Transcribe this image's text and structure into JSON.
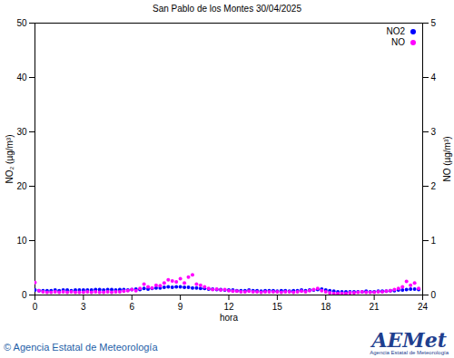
{
  "chart_data": {
    "type": "scatter",
    "title": "San Pablo de los Montes 30/04/2025",
    "x_label": "hora",
    "y_label": "NO₂ (µg/m³)",
    "y2_label": "NO (µg/m³)",
    "annotations": [
      "© Agencia Estatal de Meteorología",
      "AEMet",
      "Agencia Estatal de Meteorología"
    ],
    "legend": "top-right",
    "marker": "circle",
    "xlim": [
      0,
      24
    ],
    "xticks": [
      0,
      3,
      6,
      9,
      12,
      15,
      18,
      21,
      24
    ],
    "ylim": [
      0,
      50
    ],
    "yticks": [
      0,
      10,
      20,
      30,
      40,
      50
    ],
    "y2lim": [
      0,
      5
    ],
    "y2ticks": [
      0,
      1,
      2,
      3,
      4,
      5
    ],
    "x": [
      0,
      0.25,
      0.5,
      0.75,
      1,
      1.25,
      1.5,
      1.75,
      2,
      2.25,
      2.5,
      2.75,
      3,
      3.25,
      3.5,
      3.75,
      4,
      4.25,
      4.5,
      4.75,
      5,
      5.25,
      5.5,
      5.75,
      6,
      6.25,
      6.5,
      6.75,
      7,
      7.25,
      7.5,
      7.75,
      8,
      8.25,
      8.5,
      8.75,
      9,
      9.25,
      9.5,
      9.75,
      10,
      10.25,
      10.5,
      10.75,
      11,
      11.25,
      11.5,
      11.75,
      12,
      12.25,
      12.5,
      12.75,
      13,
      13.25,
      13.5,
      13.75,
      14,
      14.25,
      14.5,
      14.75,
      15,
      15.25,
      15.5,
      15.75,
      16,
      16.25,
      16.5,
      16.75,
      17,
      17.25,
      17.5,
      17.75,
      18,
      18.25,
      18.5,
      18.75,
      19,
      19.25,
      19.5,
      19.75,
      20,
      20.25,
      20.5,
      20.75,
      21,
      21.25,
      21.5,
      21.75,
      22,
      22.25,
      22.5,
      22.75,
      23,
      23.25,
      23.5,
      23.75
    ],
    "series": [
      {
        "name": "NO2",
        "color": "#0000ff",
        "axis": "y",
        "values": [
          0.9,
          0.8,
          0.8,
          0.8,
          0.8,
          0.9,
          0.8,
          0.9,
          0.9,
          0.8,
          0.9,
          0.9,
          0.9,
          0.9,
          0.9,
          1.0,
          1.0,
          0.9,
          1.0,
          1.0,
          0.9,
          1.0,
          1.0,
          0.9,
          1.0,
          1.1,
          1.0,
          1.2,
          1.1,
          1.2,
          1.3,
          1.3,
          1.4,
          1.5,
          1.4,
          1.5,
          1.5,
          1.4,
          1.4,
          1.3,
          1.3,
          1.2,
          1.2,
          1.1,
          1.1,
          1.0,
          1.0,
          0.9,
          0.9,
          0.9,
          0.8,
          0.8,
          0.8,
          0.9,
          0.8,
          0.8,
          0.7,
          0.8,
          0.8,
          0.8,
          0.7,
          0.8,
          0.8,
          0.7,
          0.8,
          0.8,
          0.9,
          0.8,
          0.9,
          0.9,
          1.0,
          1.1,
          0.9,
          0.8,
          0.7,
          0.6,
          0.6,
          0.6,
          0.6,
          0.6,
          0.6,
          0.6,
          0.7,
          0.6,
          0.6,
          0.7,
          0.7,
          0.7,
          0.8,
          0.8,
          0.9,
          0.9,
          1.0,
          1.1,
          1.1,
          1.0
        ]
      },
      {
        "name": "NO",
        "color": "#ff00ff",
        "axis": "y2",
        "values": [
          0.23,
          0.08,
          0.06,
          0.05,
          0.05,
          0.06,
          0.05,
          0.06,
          0.05,
          0.06,
          0.05,
          0.05,
          0.05,
          0.06,
          0.05,
          0.06,
          0.05,
          0.05,
          0.06,
          0.05,
          0.06,
          0.06,
          0.07,
          0.08,
          0.1,
          0.08,
          0.12,
          0.2,
          0.15,
          0.13,
          0.18,
          0.17,
          0.22,
          0.28,
          0.26,
          0.24,
          0.3,
          0.22,
          0.33,
          0.37,
          0.2,
          0.18,
          0.15,
          0.12,
          0.1,
          0.11,
          0.09,
          0.1,
          0.08,
          0.07,
          0.07,
          0.06,
          0.06,
          0.07,
          0.06,
          0.06,
          0.05,
          0.06,
          0.06,
          0.06,
          0.06,
          0.05,
          0.06,
          0.06,
          0.05,
          0.06,
          0.07,
          0.06,
          0.08,
          0.1,
          0.12,
          0.08,
          0.06,
          0.04,
          0.03,
          0.03,
          0.03,
          0.03,
          0.04,
          0.04,
          0.05,
          0.06,
          0.05,
          0.05,
          0.05,
          0.06,
          0.06,
          0.07,
          0.08,
          0.1,
          0.12,
          0.15,
          0.25,
          0.18,
          0.22,
          0.12
        ]
      }
    ]
  }
}
